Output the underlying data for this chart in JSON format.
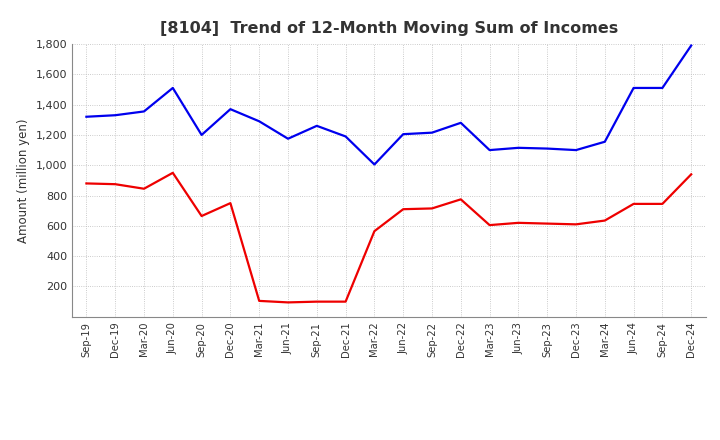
{
  "title": "[8104]  Trend of 12-Month Moving Sum of Incomes",
  "ylabel": "Amount (million yen)",
  "x_labels": [
    "Sep-19",
    "Dec-19",
    "Mar-20",
    "Jun-20",
    "Sep-20",
    "Dec-20",
    "Mar-21",
    "Jun-21",
    "Sep-21",
    "Dec-21",
    "Mar-22",
    "Jun-22",
    "Sep-22",
    "Dec-22",
    "Mar-23",
    "Jun-23",
    "Sep-23",
    "Dec-23",
    "Mar-24",
    "Jun-24",
    "Sep-24",
    "Dec-24"
  ],
  "ordinary_income": [
    1320,
    1330,
    1355,
    1510,
    1200,
    1370,
    1290,
    1175,
    1260,
    1190,
    1005,
    1205,
    1215,
    1280,
    1100,
    1115,
    1110,
    1100,
    1155,
    1510,
    1510,
    1790
  ],
  "net_income": [
    880,
    875,
    845,
    950,
    665,
    750,
    105,
    95,
    100,
    100,
    565,
    710,
    715,
    775,
    605,
    620,
    615,
    610,
    635,
    745,
    745,
    940
  ],
  "ordinary_color": "#0000EE",
  "net_color": "#EE0000",
  "ylim": [
    0,
    1800
  ],
  "yticks": [
    200,
    400,
    600,
    800,
    1000,
    1200,
    1400,
    1600,
    1800
  ],
  "title_color": "#333333",
  "background_color": "#FFFFFF",
  "grid_color": "#BBBBBB"
}
